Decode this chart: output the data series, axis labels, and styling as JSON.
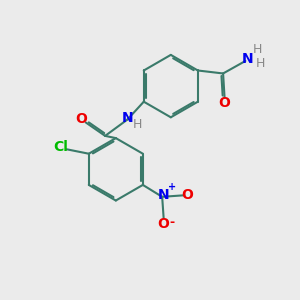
{
  "bg_color": "#ebebeb",
  "bond_color": "#3a7a6a",
  "N_color": "#0000ee",
  "O_color": "#ee0000",
  "Cl_color": "#00bb00",
  "H_color": "#888888",
  "line_width": 1.5,
  "dbo": 0.06,
  "font_size": 10,
  "small_font_size": 9,
  "fig_size": [
    3.0,
    3.0
  ],
  "dpi": 100,
  "xlim": [
    0,
    10
  ],
  "ylim": [
    0,
    10
  ]
}
